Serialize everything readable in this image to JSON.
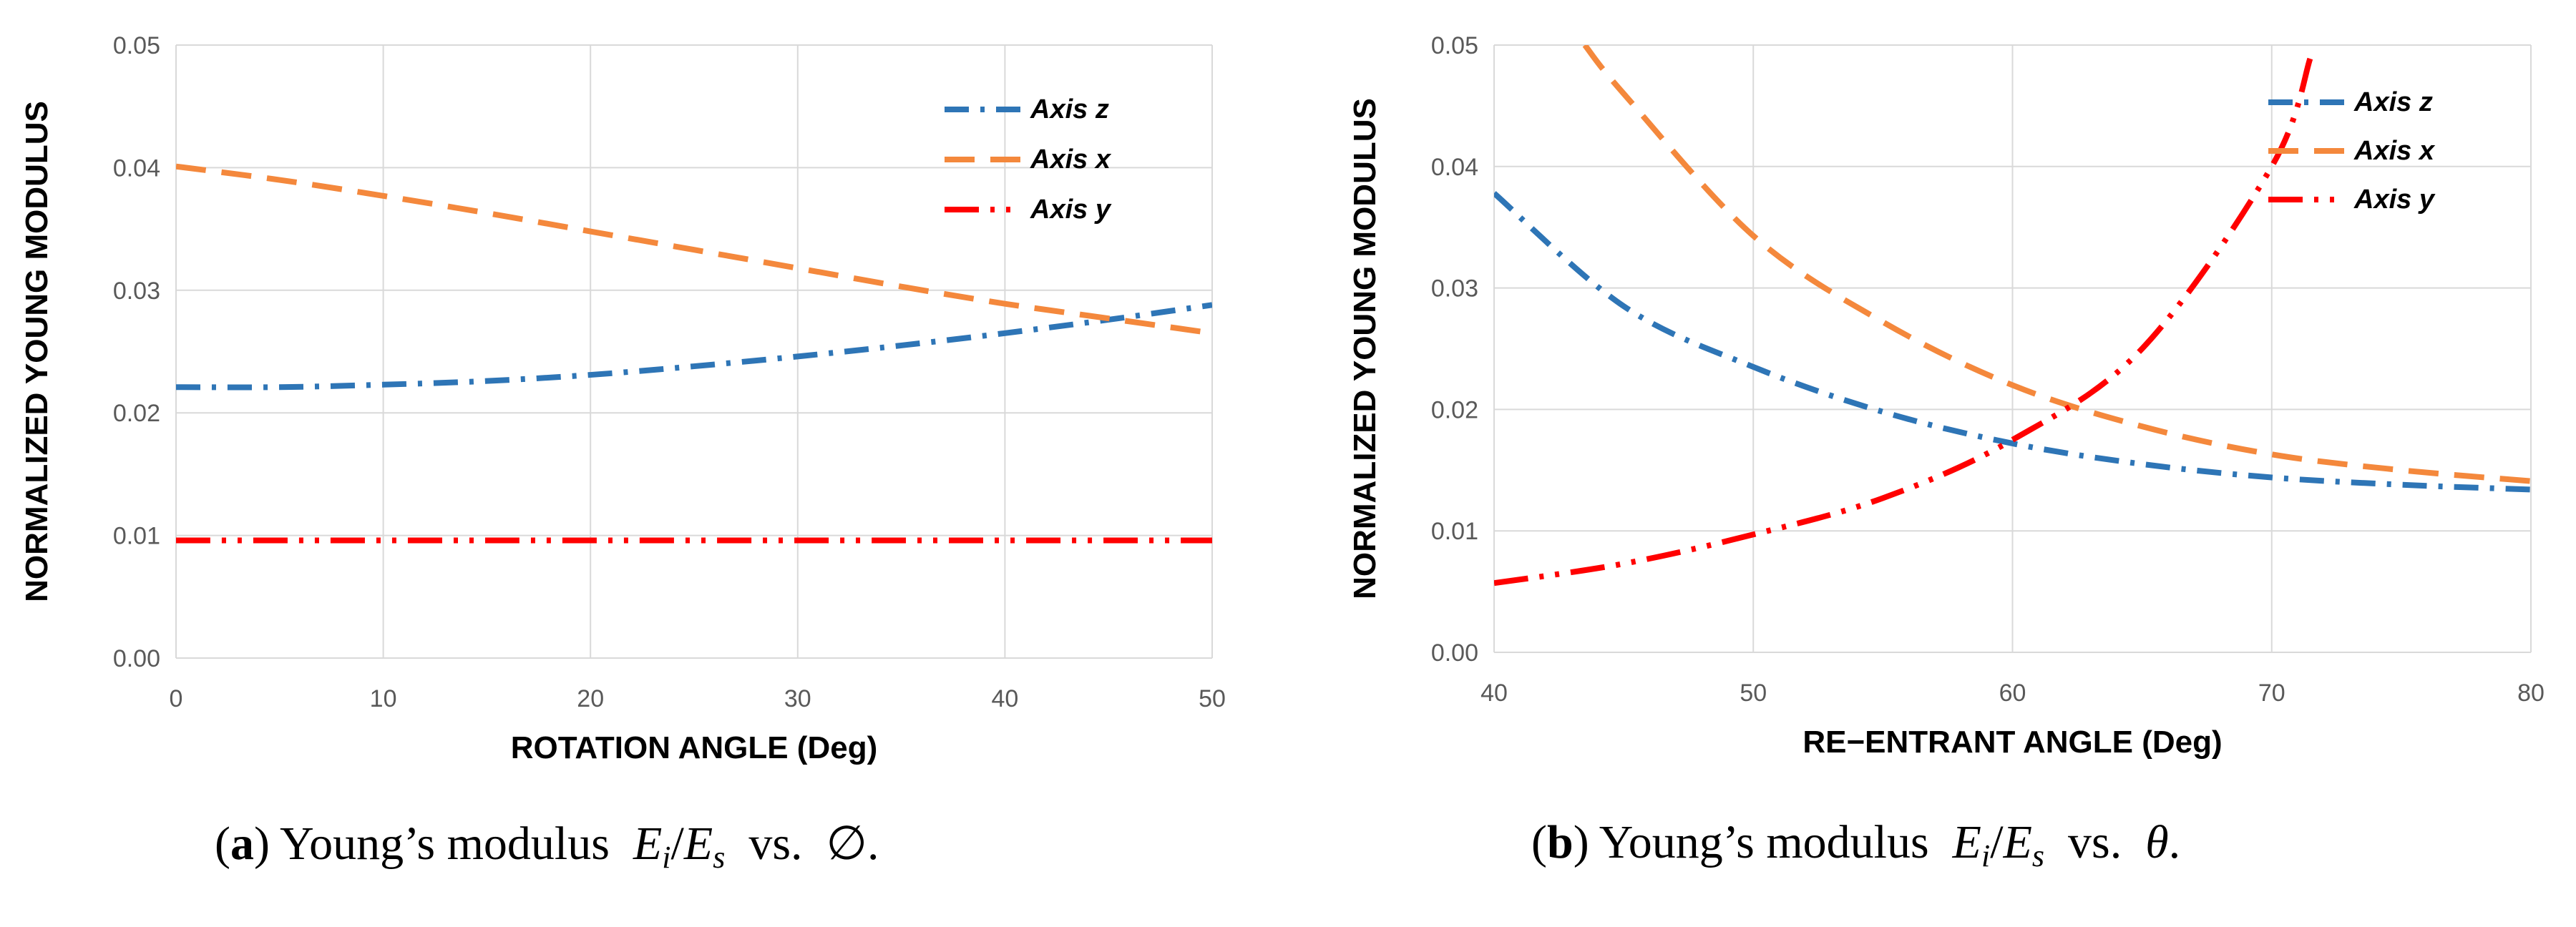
{
  "chart_data": [
    {
      "type": "line",
      "xlabel": "ROTATION ANGLE (Deg)",
      "ylabel": "NORMALIZED YOUNG MODULUS",
      "xlim": [
        0,
        50
      ],
      "ylim": [
        0,
        0.05
      ],
      "x_ticks": [
        "0",
        "10",
        "20",
        "30",
        "40",
        "50"
      ],
      "y_ticks": [
        "0.00",
        "0.01",
        "0.02",
        "0.03",
        "0.04",
        "0.05"
      ],
      "grid": true,
      "legend_position": "top-right",
      "series": [
        {
          "name": "Axis z",
          "color": "#2E75B6",
          "dash": "dashdot",
          "x": [
            0,
            5,
            10,
            15,
            20,
            25,
            30,
            35,
            40,
            45,
            50
          ],
          "y": [
            0.0221,
            0.0221,
            0.0223,
            0.0226,
            0.0231,
            0.0238,
            0.0246,
            0.0255,
            0.0265,
            0.0276,
            0.0288
          ]
        },
        {
          "name": "Axis x",
          "color": "#F4883C",
          "dash": "dash",
          "x": [
            0,
            5,
            10,
            15,
            20,
            25,
            30,
            35,
            40,
            45,
            50
          ],
          "y": [
            0.0401,
            0.039,
            0.0377,
            0.0363,
            0.0348,
            0.0333,
            0.0318,
            0.0303,
            0.0289,
            0.0277,
            0.0265
          ]
        },
        {
          "name": "Axis y",
          "color": "#FF0000",
          "dash": "dashdotdot",
          "x": [
            0,
            50
          ],
          "y": [
            0.0096,
            0.0096
          ]
        }
      ]
    },
    {
      "type": "line",
      "xlabel": "RE−ENTRANT ANGLE (Deg)",
      "ylabel": "NORMALIZED YOUNG MODULUS",
      "xlim": [
        40,
        80
      ],
      "ylim": [
        0,
        0.05
      ],
      "x_ticks": [
        "40",
        "50",
        "60",
        "70",
        "80"
      ],
      "y_ticks": [
        "0.00",
        "0.01",
        "0.02",
        "0.03",
        "0.04",
        "0.05"
      ],
      "grid": true,
      "legend_position": "top-right",
      "series": [
        {
          "name": "Axis z",
          "color": "#2E75B6",
          "dash": "dashdot",
          "x": [
            40,
            45,
            50,
            55,
            60,
            65,
            70,
            75,
            80
          ],
          "y": [
            0.0378,
            0.0285,
            0.0235,
            0.0198,
            0.0172,
            0.0155,
            0.0144,
            0.0138,
            0.0134
          ]
        },
        {
          "name": "Axis x",
          "color": "#F4883C",
          "dash": "dash",
          "x": [
            43.5,
            45,
            50,
            55,
            60,
            65,
            70,
            75,
            80
          ],
          "y": [
            0.05,
            0.046,
            0.0343,
            0.0272,
            0.022,
            0.0186,
            0.0163,
            0.015,
            0.0141
          ]
        },
        {
          "name": "Axis y",
          "color": "#FF0000",
          "dash": "dashdotdot",
          "x": [
            40,
            45,
            50,
            55,
            60,
            65,
            70,
            71.5
          ],
          "y": [
            0.0057,
            0.0073,
            0.0097,
            0.0127,
            0.0175,
            0.025,
            0.04,
            0.049
          ]
        }
      ]
    }
  ],
  "captions": [
    {
      "label": "a",
      "text": "Young’s modulus",
      "expr": "E",
      "sub1": "i",
      "slash": "/",
      "expr2": "E",
      "sub2": "s",
      "vs": "vs.",
      "var": "∅",
      "end": "."
    },
    {
      "label": "b",
      "text": "Young’s modulus",
      "expr": "E",
      "sub1": "i",
      "slash": "/",
      "expr2": "E",
      "sub2": "s",
      "vs": "vs.",
      "var": "θ",
      "end": "."
    }
  ]
}
